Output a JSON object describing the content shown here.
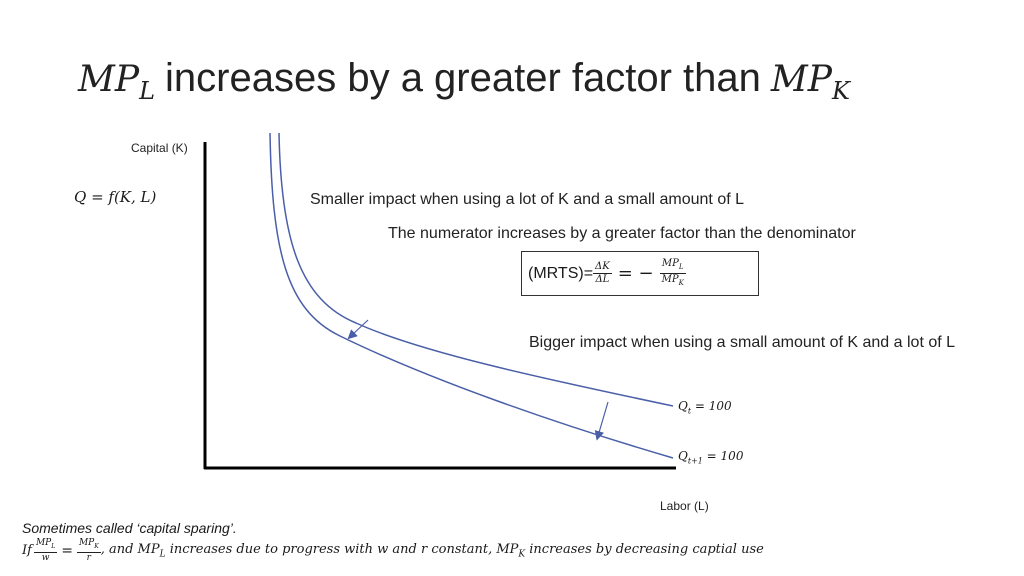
{
  "title": {
    "mp": "MP",
    "sub_l": "L",
    "sub_k": "K",
    "text": "increases by a greater factor than"
  },
  "axes": {
    "y_label": "Capital (K)",
    "x_label": "Labor (L)"
  },
  "production_function": "Q = f(K, L)",
  "annotations": {
    "smaller_impact": "Smaller impact when using a lot of K and a small amount of L",
    "numerator": "The numerator increases by a greater factor than the denominator",
    "bigger_impact": "Bigger impact when using a small amount of K and a lot of L"
  },
  "mrts": {
    "prefix": "(MRTS)=",
    "dk": "ΔK",
    "dl": "ΔL",
    "eq": "= −",
    "mpl": "MP",
    "mpl_sub": "L",
    "mpk": "MP",
    "mpk_sub": "K"
  },
  "curves": {
    "q_t": {
      "q": "Q",
      "sub": "t",
      "rest": " = 100"
    },
    "q_t1": {
      "q": "Q",
      "sub": "t+1",
      "rest": " = 100"
    }
  },
  "footer": {
    "note": "Sometimes called ‘capital sparing’.",
    "if": "If",
    "mpl": "MP",
    "mpl_sub": "L",
    "w": "w",
    "eq": "=",
    "mpk": "MP",
    "mpk_sub": "K",
    "r": "r",
    "part1": ", and MP",
    "part1_sub": "L",
    "part2": " increases due to progress with w and r constant, MP",
    "part2_sub": "K",
    "part3": " increases by decreasing captial use"
  },
  "colors": {
    "curve": "#4a5fa8",
    "axis": "#000000"
  }
}
